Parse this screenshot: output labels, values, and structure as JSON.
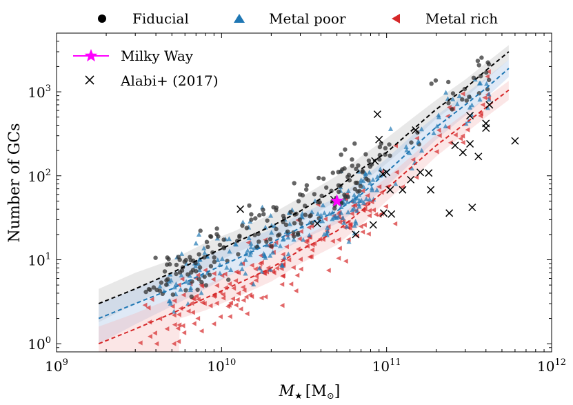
{
  "chart_data": {
    "type": "scatter",
    "xscale": "log",
    "yscale": "log",
    "xlim": [
      1000000000.0,
      1000000000000.0
    ],
    "ylim": [
      0.8,
      5000
    ],
    "xlabel": "M",
    "xlabel_sub": "★",
    "xlabel_unit_open": "[M",
    "xlabel_unit_sub": "⊙",
    "xlabel_unit_close": "]",
    "ylabel": "Number of GCs",
    "x_ticks": [
      {
        "value": 1000000000.0,
        "base": "10",
        "exp": "9"
      },
      {
        "value": 10000000000.0,
        "base": "10",
        "exp": "10"
      },
      {
        "value": 100000000000.0,
        "base": "10",
        "exp": "11"
      },
      {
        "value": 1000000000000.0,
        "base": "10",
        "exp": "12"
      }
    ],
    "y_ticks": [
      {
        "value": 1,
        "base": "10",
        "exp": "0"
      },
      {
        "value": 10,
        "base": "10",
        "exp": "1"
      },
      {
        "value": 100,
        "base": "10",
        "exp": "2"
      },
      {
        "value": 1000,
        "base": "10",
        "exp": "3"
      }
    ],
    "top_legend": [
      {
        "label": "Fiducial",
        "marker": "circle",
        "color": "#000000"
      },
      {
        "label": "Metal poor",
        "marker": "triangle-up",
        "color": "#1f77b4"
      },
      {
        "label": "Metal rich",
        "marker": "triangle-left",
        "color": "#d62728"
      }
    ],
    "inner_legend": [
      {
        "label": "Milky Way",
        "marker": "star-line",
        "color": "#ff00ff"
      },
      {
        "label": "Alabi+ (2017)",
        "marker": "x",
        "color": "#000000"
      }
    ],
    "colors": {
      "fiducial": "#333333",
      "metal_poor": "#1f77b4",
      "metal_rich": "#d62728",
      "milky_way": "#ff00ff",
      "alabi": "#000000"
    },
    "median_lines": [
      {
        "name": "Fiducial",
        "color": "#000000",
        "points": [
          [
            1800000000.0,
            3
          ],
          [
            3000000000.0,
            4.5
          ],
          [
            5000000000.0,
            7
          ],
          [
            8000000000.0,
            11
          ],
          [
            12000000000.0,
            16
          ],
          [
            20000000000.0,
            25
          ],
          [
            30000000000.0,
            38
          ],
          [
            50000000000.0,
            70
          ],
          [
            70000000000.0,
            120
          ],
          [
            100000000000.0,
            190
          ],
          [
            150000000000.0,
            380
          ],
          [
            200000000000.0,
            620
          ],
          [
            300000000000.0,
            1100
          ],
          [
            400000000000.0,
            1800
          ],
          [
            550000000000.0,
            3000
          ]
        ]
      },
      {
        "name": "Metal poor",
        "color": "#1f77b4",
        "points": [
          [
            1800000000.0,
            2
          ],
          [
            3000000000.0,
            3
          ],
          [
            5000000000.0,
            4.5
          ],
          [
            8000000000.0,
            7
          ],
          [
            12000000000.0,
            10
          ],
          [
            20000000000.0,
            16
          ],
          [
            30000000000.0,
            24
          ],
          [
            50000000000.0,
            38
          ],
          [
            70000000000.0,
            60
          ],
          [
            100000000000.0,
            110
          ],
          [
            150000000000.0,
            230
          ],
          [
            200000000000.0,
            380
          ],
          [
            300000000000.0,
            700
          ],
          [
            400000000000.0,
            1100
          ],
          [
            550000000000.0,
            1900
          ]
        ]
      },
      {
        "name": "Metal rich",
        "color": "#d62728",
        "points": [
          [
            1800000000.0,
            1
          ],
          [
            3000000000.0,
            1.5
          ],
          [
            5000000000.0,
            2.3
          ],
          [
            8000000000.0,
            3.5
          ],
          [
            12000000000.0,
            5
          ],
          [
            20000000000.0,
            8
          ],
          [
            30000000000.0,
            13
          ],
          [
            50000000000.0,
            22
          ],
          [
            70000000000.0,
            38
          ],
          [
            100000000000.0,
            70
          ],
          [
            150000000000.0,
            140
          ],
          [
            200000000000.0,
            230
          ],
          [
            300000000000.0,
            420
          ],
          [
            400000000000.0,
            650
          ],
          [
            550000000000.0,
            1050
          ]
        ]
      }
    ],
    "bands": [
      {
        "name": "Fiducial",
        "color": "#bdbdbd",
        "opacity": 0.35,
        "lower": [
          [
            1800000000.0,
            1.8
          ],
          [
            3000000000.0,
            3
          ],
          [
            5000000000.0,
            5
          ],
          [
            8000000000.0,
            8
          ],
          [
            12000000000.0,
            12
          ],
          [
            20000000000.0,
            18
          ],
          [
            30000000000.0,
            28
          ],
          [
            50000000000.0,
            50
          ],
          [
            70000000000.0,
            80
          ],
          [
            100000000000.0,
            140
          ],
          [
            150000000000.0,
            280
          ],
          [
            200000000000.0,
            480
          ],
          [
            300000000000.0,
            850
          ],
          [
            400000000000.0,
            1400
          ],
          [
            550000000000.0,
            2400
          ]
        ],
        "upper": [
          [
            1800000000.0,
            4.5
          ],
          [
            3000000000.0,
            7
          ],
          [
            5000000000.0,
            10
          ],
          [
            8000000000.0,
            16
          ],
          [
            12000000000.0,
            22
          ],
          [
            20000000000.0,
            35
          ],
          [
            30000000000.0,
            55
          ],
          [
            50000000000.0,
            100
          ],
          [
            70000000000.0,
            170
          ],
          [
            100000000000.0,
            280
          ],
          [
            150000000000.0,
            520
          ],
          [
            200000000000.0,
            800
          ],
          [
            300000000000.0,
            1400
          ],
          [
            400000000000.0,
            2200
          ],
          [
            550000000000.0,
            3600
          ]
        ]
      },
      {
        "name": "Metal poor",
        "color": "#aec7e8",
        "opacity": 0.4,
        "lower": [
          [
            1800000000.0,
            1
          ],
          [
            3000000000.0,
            1.7
          ],
          [
            5000000000.0,
            2.8
          ],
          [
            8000000000.0,
            4.5
          ],
          [
            12000000000.0,
            7
          ],
          [
            20000000000.0,
            11
          ],
          [
            30000000000.0,
            17
          ],
          [
            50000000000.0,
            27
          ],
          [
            70000000000.0,
            42
          ],
          [
            100000000000.0,
            75
          ],
          [
            150000000000.0,
            160
          ],
          [
            200000000000.0,
            270
          ],
          [
            300000000000.0,
            520
          ],
          [
            400000000000.0,
            850
          ],
          [
            550000000000.0,
            1500
          ]
        ],
        "upper": [
          [
            1800000000.0,
            3
          ],
          [
            3000000000.0,
            4.5
          ],
          [
            5000000000.0,
            7
          ],
          [
            8000000000.0,
            11
          ],
          [
            12000000000.0,
            15
          ],
          [
            20000000000.0,
            23
          ],
          [
            30000000000.0,
            35
          ],
          [
            50000000000.0,
            55
          ],
          [
            70000000000.0,
            90
          ],
          [
            100000000000.0,
            160
          ],
          [
            150000000000.0,
            330
          ],
          [
            200000000000.0,
            520
          ],
          [
            300000000000.0,
            950
          ],
          [
            400000000000.0,
            1450
          ],
          [
            550000000000.0,
            2400
          ]
        ]
      },
      {
        "name": "Metal rich",
        "color": "#f4b6b6",
        "opacity": 0.35,
        "lower": [
          [
            1800000000.0,
            0.6
          ],
          [
            5500000000.0,
            0.6
          ],
          [
            5600000000.0,
            2
          ],
          [
            8000000000.0,
            2.5
          ],
          [
            12000000000.0,
            3.5
          ],
          [
            20000000000.0,
            5.5
          ],
          [
            30000000000.0,
            9
          ],
          [
            50000000000.0,
            15
          ],
          [
            70000000000.0,
            26
          ],
          [
            100000000000.0,
            50
          ],
          [
            150000000000.0,
            100
          ],
          [
            200000000000.0,
            170
          ],
          [
            300000000000.0,
            320
          ],
          [
            400000000000.0,
            500
          ],
          [
            550000000000.0,
            800
          ]
        ],
        "upper": [
          [
            1800000000.0,
            1.6
          ],
          [
            3000000000.0,
            2.3
          ],
          [
            5000000000.0,
            3.5
          ],
          [
            8000000000.0,
            5
          ],
          [
            12000000000.0,
            7
          ],
          [
            20000000000.0,
            11
          ],
          [
            30000000000.0,
            18
          ],
          [
            50000000000.0,
            30
          ],
          [
            70000000000.0,
            55
          ],
          [
            100000000000.0,
            95
          ],
          [
            150000000000.0,
            190
          ],
          [
            200000000000.0,
            310
          ],
          [
            300000000000.0,
            560
          ],
          [
            400000000000.0,
            850
          ],
          [
            550000000000.0,
            1350
          ]
        ]
      }
    ],
    "alabi": [
      [
        13000000000.0,
        40
      ],
      [
        38000000000.0,
        27
      ],
      [
        48000000000.0,
        52
      ],
      [
        65000000000.0,
        20
      ],
      [
        83000000000.0,
        26
      ],
      [
        88000000000.0,
        540
      ],
      [
        90000000000.0,
        270
      ],
      [
        85000000000.0,
        150
      ],
      [
        95000000000.0,
        105
      ],
      [
        100000000000.0,
        110
      ],
      [
        105000000000.0,
        68
      ],
      [
        96000000000.0,
        36
      ],
      [
        107000000000.0,
        35
      ],
      [
        125000000000.0,
        68
      ],
      [
        140000000000.0,
        90
      ],
      [
        150000000000.0,
        350
      ],
      [
        160000000000.0,
        110
      ],
      [
        180000000000.0,
        108
      ],
      [
        185000000000.0,
        68
      ],
      [
        240000000000.0,
        36
      ],
      [
        260000000000.0,
        230
      ],
      [
        290000000000.0,
        190
      ],
      [
        320000000000.0,
        240
      ],
      [
        330000000000.0,
        42
      ],
      [
        360000000000.0,
        170
      ],
      [
        320000000000.0,
        520
      ],
      [
        400000000000.0,
        420
      ],
      [
        400000000000.0,
        370
      ],
      [
        420000000000.0,
        700
      ],
      [
        600000000000.0,
        260
      ]
    ],
    "milky_way": [
      50000000000.0,
      50
    ],
    "scatter_counts": {
      "fiducial": 200,
      "metal_poor": 220,
      "metal_rich": 230
    }
  }
}
